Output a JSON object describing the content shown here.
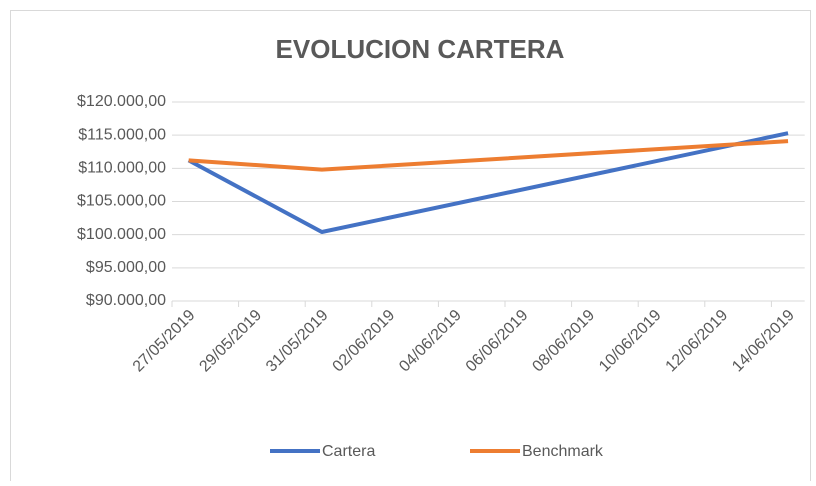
{
  "chart_data": {
    "type": "line",
    "title": "EVOLUCION CARTERA",
    "x": [
      "27/05/2019",
      "31/05/2019",
      "14/06/2019"
    ],
    "xlim": [
      "27/05/2019",
      "14/06/2019"
    ],
    "xticks": [
      "27/05/2019",
      "29/05/2019",
      "31/05/2019",
      "02/06/2019",
      "04/06/2019",
      "06/06/2019",
      "08/06/2019",
      "10/06/2019",
      "12/06/2019",
      "14/06/2019"
    ],
    "series": [
      {
        "name": "Cartera",
        "color": "#4472c4",
        "values": [
          111200,
          100400,
          115300
        ]
      },
      {
        "name": "Benchmark",
        "color": "#ed7d31",
        "values": [
          111200,
          109800,
          114100
        ]
      }
    ],
    "ylim": [
      90000,
      120000
    ],
    "yticks": [
      {
        "value": 90000,
        "label": "$90.000,00"
      },
      {
        "value": 95000,
        "label": "$95.000,00"
      },
      {
        "value": 100000,
        "label": "$100.000,00"
      },
      {
        "value": 105000,
        "label": "$105.000,00"
      },
      {
        "value": 110000,
        "label": "$110.000,00"
      },
      {
        "value": 115000,
        "label": "$115.000,00"
      },
      {
        "value": 120000,
        "label": "$120.000,00"
      }
    ],
    "grid": true,
    "legend": "bottom"
  }
}
